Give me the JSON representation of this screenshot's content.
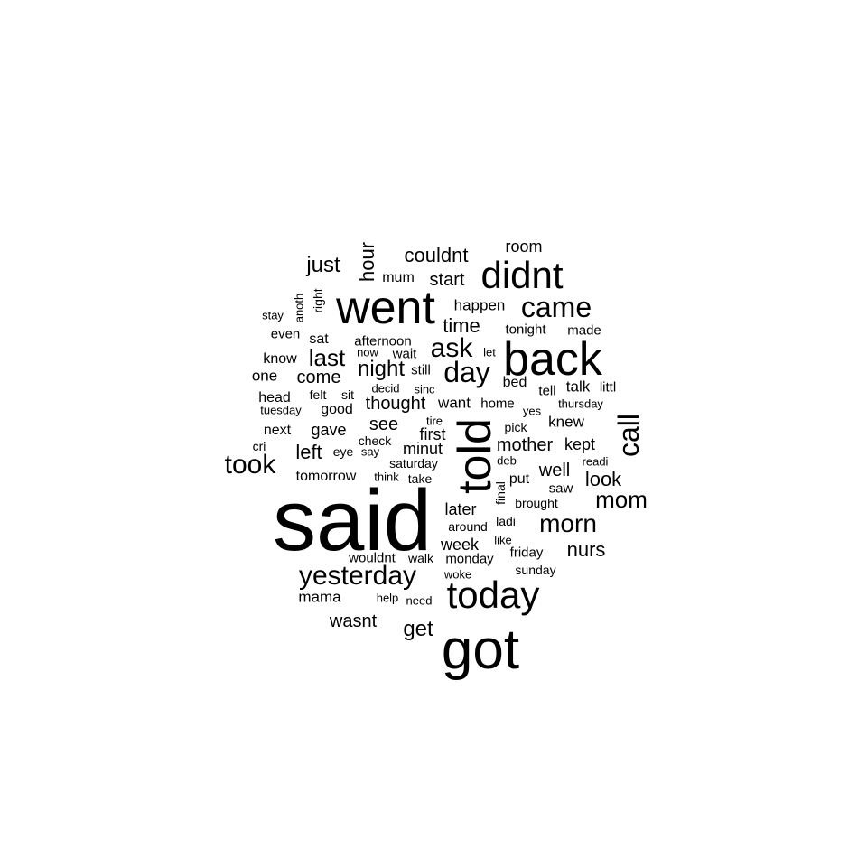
{
  "words": [
    "said",
    "got",
    "went",
    "back",
    "told",
    "didnt",
    "today",
    "came",
    "yesterday",
    "call",
    "day",
    "ask",
    "morn",
    "took",
    "mom",
    "last",
    "night",
    "nurs",
    "couldnt",
    "just",
    "hour",
    "start",
    "time",
    "left",
    "mother",
    "look",
    "well",
    "get",
    "wasnt",
    "come",
    "thought",
    "see",
    "first",
    "gave",
    "minut",
    "kept",
    "knew",
    "later",
    "week",
    "talk",
    "want",
    "room",
    "mum",
    "happen",
    "tonight",
    "made",
    "afternoon",
    "wait",
    "still",
    "one",
    "know",
    "head",
    "even",
    "sat",
    "now",
    "let",
    "bed",
    "tell",
    "littl",
    "good",
    "home",
    "thursday",
    "yes",
    "pick",
    "tire",
    "next",
    "cri",
    "eye",
    "say",
    "check",
    "saturday",
    "deb",
    "readi",
    "tomorrow",
    "think",
    "take",
    "put",
    "saw",
    "brought",
    "final",
    "around",
    "ladi",
    "like",
    "friday",
    "wouldnt",
    "walk",
    "monday",
    "sunday",
    "woke",
    "mama",
    "help",
    "need",
    "stay",
    "anoth",
    "right",
    "felt",
    "sit",
    "decid",
    "sinc",
    "tuesday"
  ]
}
